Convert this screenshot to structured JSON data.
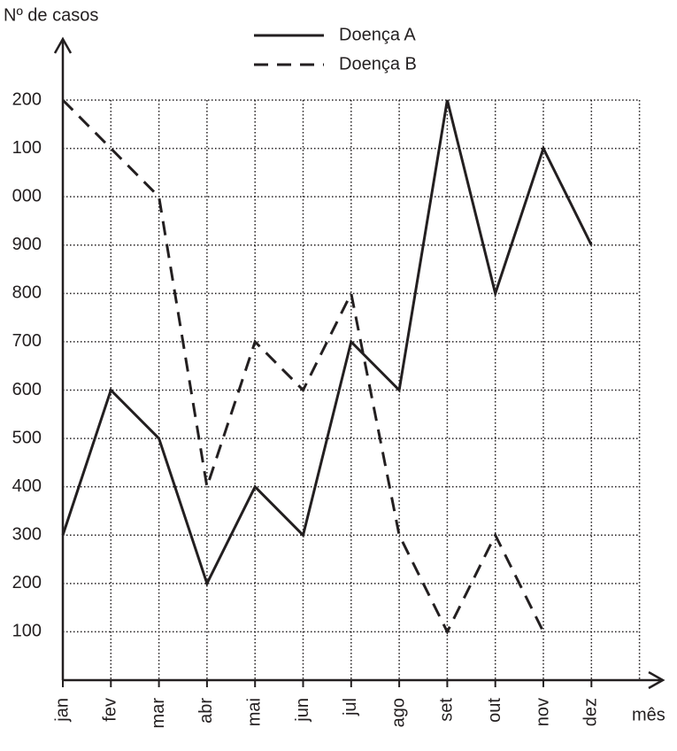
{
  "chart_data": {
    "type": "line",
    "y_label": "Nº de casos",
    "x_label": "mês",
    "categories": [
      "jan",
      "fev",
      "mar",
      "abr",
      "mai",
      "jun",
      "jul",
      "ago",
      "set",
      "out",
      "nov",
      "dez"
    ],
    "series": [
      {
        "name": "Doença A",
        "color": "#231f20",
        "dash": "solid",
        "values": [
          300,
          600,
          500,
          200,
          400,
          300,
          700,
          600,
          1200,
          800,
          1100,
          900
        ]
      },
      {
        "name": "Doença B",
        "color": "#231f20",
        "dash": "dashed",
        "values": [
          1200,
          1100,
          1000,
          400,
          700,
          600,
          800,
          300,
          100,
          300,
          100,
          null
        ]
      }
    ],
    "ylim": [
      0,
      1200
    ],
    "yticks": [
      100,
      200,
      300,
      400,
      500,
      600,
      700,
      800,
      900,
      {
        "value": 1000,
        "label": "000"
      },
      {
        "value": 1100,
        "label": "100"
      },
      {
        "value": 1200,
        "label": "200"
      }
    ],
    "grid": true
  }
}
